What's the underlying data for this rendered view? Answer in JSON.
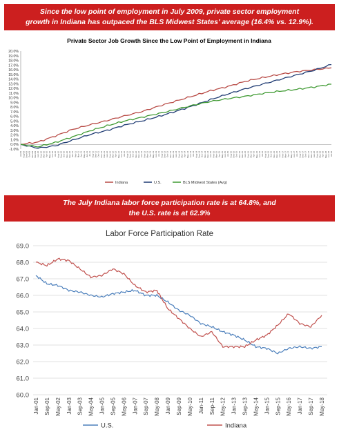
{
  "banner_top": {
    "line1": "Since the low point of employment in July 2009, private sector employment",
    "line2": "growth in Indiana has outpaced the BLS Midwest States' average (16.4% vs. 12.9%)."
  },
  "banner_bottom": {
    "line1": "The July Indiana labor force participation rate is at 64.8%, and",
    "line2": "the U.S. rate is at 62.9%"
  },
  "colors": {
    "banner": "#cc1f1f",
    "indiana": "#b84a45",
    "us": "#1f3b73",
    "midwest": "#3f9a32",
    "us_lfpr": "#4a7ebb",
    "indiana_lfpr": "#c0504d"
  },
  "chart_data": [
    {
      "type": "line",
      "title": "Private Sector Job Growth Since the Low Point of Employment in Indiana",
      "ylim": [
        -1,
        20
      ],
      "y_ticks": [
        "20.0%",
        "19.0%",
        "18.0%",
        "17.0%",
        "16.0%",
        "15.0%",
        "14.0%",
        "13.0%",
        "12.0%",
        "11.0%",
        "10.0%",
        "9.0%",
        "8.0%",
        "7.0%",
        "6.0%",
        "5.0%",
        "4.0%",
        "3.0%",
        "2.0%",
        "1.0%",
        "0.0%",
        "-1.0%"
      ],
      "x_range": [
        "2009-07",
        "2018-07"
      ],
      "series": [
        {
          "name": "Indiana",
          "x": [
            "2009-07",
            "2010-01",
            "2010-07",
            "2011-01",
            "2011-07",
            "2012-01",
            "2012-07",
            "2013-01",
            "2013-07",
            "2014-01",
            "2014-07",
            "2015-01",
            "2015-07",
            "2016-01",
            "2016-07",
            "2017-01",
            "2017-07",
            "2018-01",
            "2018-07"
          ],
          "values": [
            0.0,
            0.5,
            1.8,
            3.2,
            4.2,
            5.1,
            6.1,
            7.0,
            8.2,
            9.3,
            10.4,
            11.5,
            12.4,
            13.5,
            14.3,
            15.0,
            15.6,
            16.0,
            16.4
          ]
        },
        {
          "name": "U.S.",
          "x": [
            "2009-07",
            "2010-01",
            "2010-07",
            "2011-01",
            "2011-07",
            "2012-01",
            "2012-07",
            "2013-01",
            "2013-07",
            "2014-01",
            "2014-07",
            "2015-01",
            "2015-07",
            "2016-01",
            "2016-07",
            "2017-01",
            "2017-07",
            "2018-01",
            "2018-07"
          ],
          "values": [
            0.0,
            -0.8,
            -0.3,
            0.9,
            2.1,
            3.0,
            4.1,
            5.0,
            6.0,
            7.1,
            8.3,
            9.6,
            10.8,
            11.9,
            12.9,
            13.9,
            14.9,
            15.9,
            17.1
          ]
        },
        {
          "name": "BLS Midwest States (Avg)",
          "x": [
            "2009-07",
            "2010-01",
            "2010-07",
            "2011-01",
            "2011-07",
            "2012-01",
            "2012-07",
            "2013-01",
            "2013-07",
            "2014-01",
            "2014-07",
            "2015-01",
            "2015-07",
            "2016-01",
            "2016-07",
            "2017-01",
            "2017-07",
            "2018-01",
            "2018-07"
          ],
          "values": [
            0.0,
            -0.5,
            0.4,
            1.6,
            2.9,
            4.0,
            5.0,
            5.8,
            6.6,
            7.5,
            8.4,
            9.2,
            9.8,
            10.3,
            10.9,
            11.4,
            11.8,
            12.3,
            12.9
          ]
        }
      ]
    },
    {
      "type": "line",
      "title": "Labor Force Participation Rate",
      "ylim": [
        60,
        69
      ],
      "y_ticks": [
        "69.0",
        "68.0",
        "67.0",
        "66.0",
        "65.0",
        "64.0",
        "63.0",
        "62.0",
        "61.0",
        "60.0"
      ],
      "categories": [
        "Jan-01",
        "Sep-01",
        "May-02",
        "Jan-03",
        "Sep-03",
        "May-04",
        "Jan-05",
        "Sep-05",
        "May-06",
        "Jan-07",
        "Sep-07",
        "May-08",
        "Jan-09",
        "Sep-09",
        "May-10",
        "Jan-11",
        "Sep-11",
        "May-12",
        "Jan-13",
        "Sep-13",
        "May-14",
        "Jan-15",
        "Sep-15",
        "May-16",
        "Jan-17",
        "Sep-17",
        "May-18"
      ],
      "series": [
        {
          "name": "U.S.",
          "values": [
            67.2,
            66.7,
            66.6,
            66.3,
            66.2,
            66.0,
            65.9,
            66.1,
            66.2,
            66.3,
            66.0,
            66.0,
            65.6,
            65.1,
            64.8,
            64.3,
            64.1,
            63.8,
            63.6,
            63.3,
            62.9,
            62.8,
            62.5,
            62.8,
            62.9,
            62.8,
            62.9
          ]
        },
        {
          "name": "Indiana",
          "values": [
            68.0,
            67.8,
            68.2,
            68.1,
            67.6,
            67.1,
            67.2,
            67.6,
            67.3,
            66.6,
            66.2,
            66.3,
            65.2,
            64.6,
            64.0,
            63.5,
            63.8,
            62.9,
            62.9,
            62.9,
            63.3,
            63.6,
            64.2,
            64.9,
            64.3,
            64.1,
            64.8
          ]
        }
      ]
    }
  ]
}
